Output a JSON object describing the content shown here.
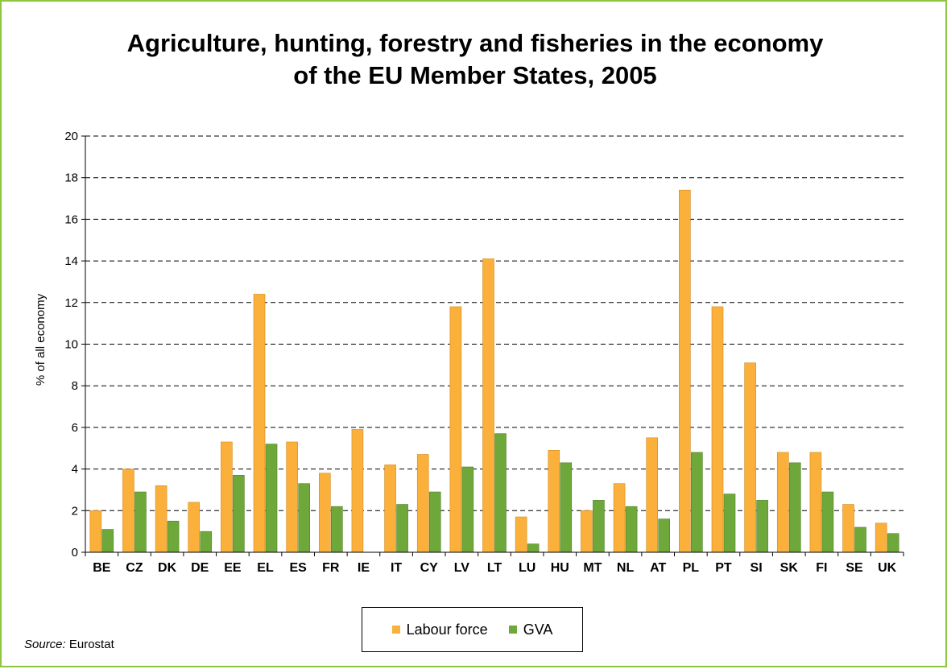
{
  "chart_data": {
    "type": "bar",
    "title_lines": [
      "Agriculture, hunting, forestry and fisheries in the economy",
      "of the EU Member States, 2005"
    ],
    "ylabel": "% of all economy",
    "xlabel": "",
    "ylim": [
      0,
      20
    ],
    "yticks": [
      0,
      2,
      4,
      6,
      8,
      10,
      12,
      14,
      16,
      18,
      20
    ],
    "grid": "dashed-horizontal",
    "legend_position": "bottom-center",
    "categories": [
      "BE",
      "CZ",
      "DK",
      "DE",
      "EE",
      "EL",
      "ES",
      "FR",
      "IE",
      "IT",
      "CY",
      "LV",
      "LT",
      "LU",
      "HU",
      "MT",
      "NL",
      "AT",
      "PL",
      "PT",
      "SI",
      "SK",
      "FI",
      "SE",
      "UK"
    ],
    "series": [
      {
        "name": "Labour force",
        "color": "#fbb03b",
        "values": [
          2.0,
          4.0,
          3.2,
          2.4,
          5.3,
          12.4,
          5.3,
          3.8,
          5.9,
          4.2,
          4.7,
          11.8,
          14.1,
          1.7,
          4.9,
          2.0,
          3.3,
          5.5,
          17.4,
          11.8,
          9.1,
          4.8,
          4.8,
          2.3,
          1.4
        ]
      },
      {
        "name": "GVA",
        "color": "#6ea83a",
        "values": [
          1.1,
          2.9,
          1.5,
          1.0,
          3.7,
          5.2,
          3.3,
          2.2,
          null,
          2.3,
          2.9,
          4.1,
          5.7,
          0.4,
          4.3,
          2.5,
          2.2,
          1.6,
          4.8,
          2.8,
          2.5,
          4.3,
          2.9,
          1.2,
          0.9
        ]
      }
    ]
  },
  "source": {
    "label": "Source:",
    "value": "Eurostat"
  },
  "colors": {
    "frame_border": "#8dc63f",
    "labour": "#fbb03b",
    "gva": "#6ea83a",
    "bar_outline": "#d18a1e",
    "gva_outline": "#4f7f27"
  }
}
